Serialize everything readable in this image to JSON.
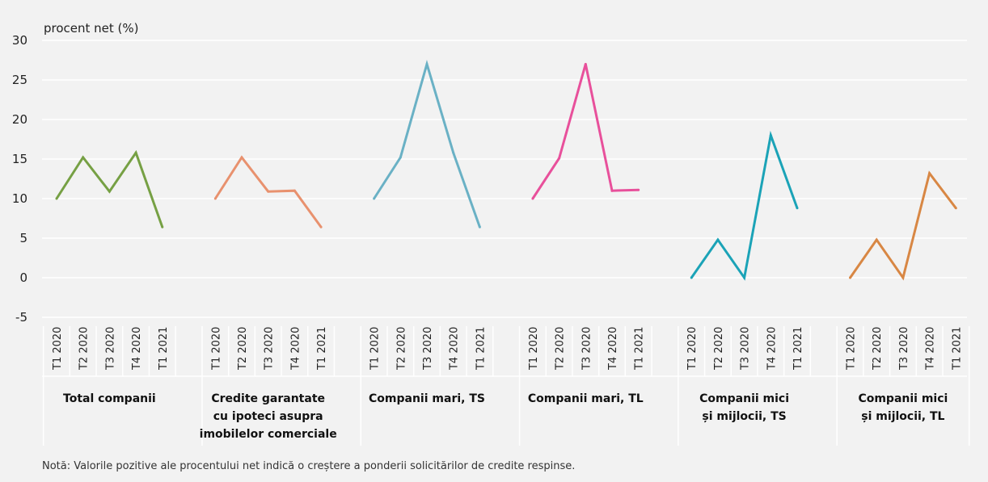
{
  "chart_data": {
    "type": "line",
    "ylabel": "procent net (%)",
    "ylim": [
      -5,
      30
    ],
    "yticks": [
      30,
      25,
      20,
      15,
      10,
      5,
      0,
      -5
    ],
    "ytick_labels": [
      "30",
      "25",
      "20",
      "15",
      "10",
      "5",
      "0",
      "-5"
    ],
    "grid": true,
    "period_labels": [
      "T1 2020",
      "T2 2020",
      "T3 2020",
      "T4 2020",
      "T1 2021"
    ],
    "groups": [
      {
        "label": "Total companii",
        "color": "#76a044",
        "values": [
          10,
          15.2,
          10.9,
          15.8,
          6.4
        ]
      },
      {
        "label": "Credite garantate\ncu ipoteci asupra\nimobilelor comerciale",
        "color": "#e8916e",
        "values": [
          10,
          15.2,
          10.9,
          11.0,
          6.4
        ]
      },
      {
        "label": "Companii mari, TS",
        "color": "#6ab1c5",
        "values": [
          10,
          15.2,
          27.0,
          15.8,
          6.4
        ]
      },
      {
        "label": "Companii mari, TL",
        "color": "#e8509b",
        "values": [
          10,
          15.1,
          27.0,
          11.0,
          11.1
        ]
      },
      {
        "label": "Companii mici\nși mijlocii, TS",
        "color": "#1ba3b7",
        "values": [
          0,
          4.8,
          0,
          18.0,
          8.8
        ]
      },
      {
        "label": "Companii mici\nși mijlocii, TL",
        "color": "#d88744",
        "values": [
          0,
          4.8,
          0,
          13.2,
          8.8
        ]
      }
    ]
  },
  "note": "Notă: Valorile pozitive ale procentului net indică o creștere a ponderii solicitărilor de credite respinse."
}
